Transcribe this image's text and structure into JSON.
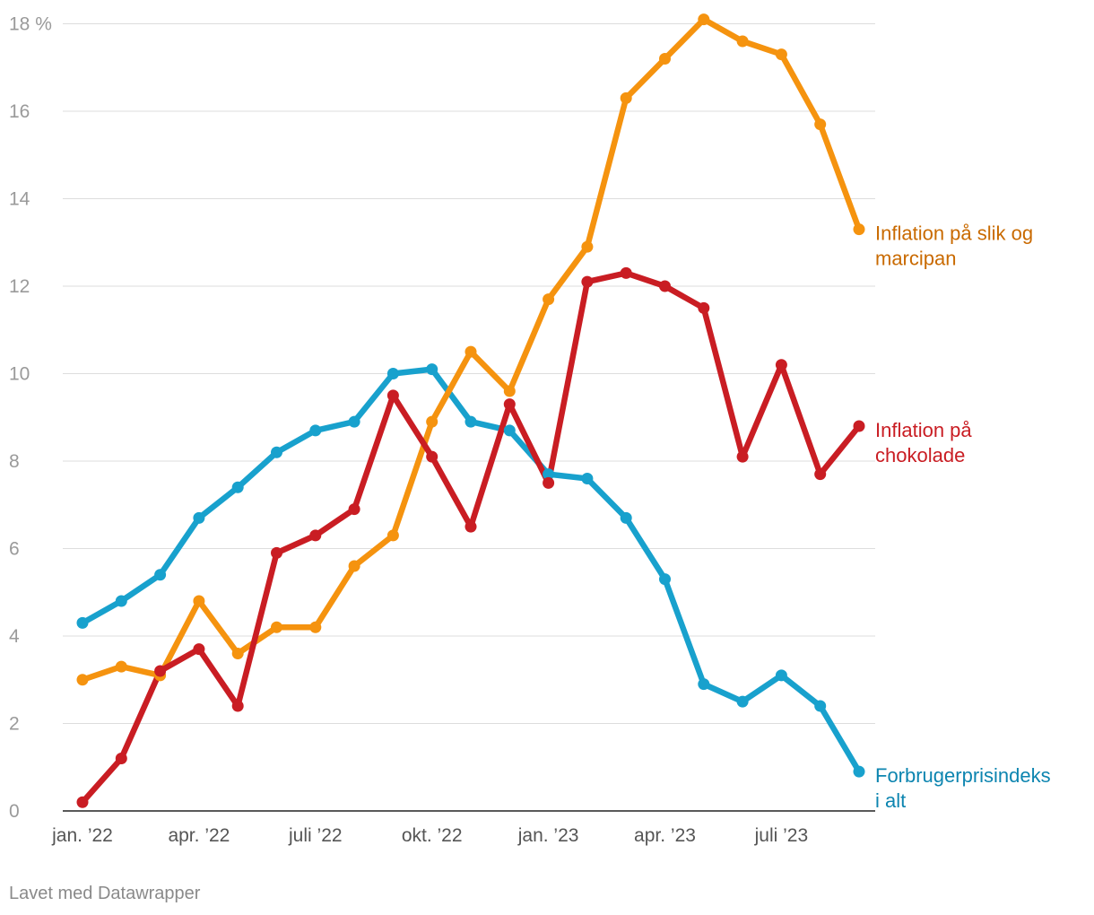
{
  "chart_data": {
    "type": "line",
    "title": "",
    "xlabel": "",
    "ylabel": "",
    "y_unit_label": "18 %",
    "ylim": [
      0,
      18
    ],
    "y_ticks": [
      0,
      2,
      4,
      6,
      8,
      10,
      12,
      14,
      16,
      18
    ],
    "y_tick_labels": [
      "0",
      "2",
      "4",
      "6",
      "8",
      "10",
      "12",
      "14",
      "16",
      "18 %"
    ],
    "x": [
      "jan. '22",
      "feb. '22",
      "mar. '22",
      "apr. '22",
      "maj '22",
      "jun. '22",
      "juli '22",
      "aug. '22",
      "sep. '22",
      "okt. '22",
      "nov. '22",
      "dec. '22",
      "jan. '23",
      "feb. '23",
      "mar. '23",
      "apr. '23",
      "maj '23",
      "jun. '23",
      "juli '23",
      "aug. '23",
      "sep. '23"
    ],
    "x_ticks": [
      {
        "index": 0,
        "label": "jan. ’22"
      },
      {
        "index": 3,
        "label": "apr. ’22"
      },
      {
        "index": 6,
        "label": "juli ’22"
      },
      {
        "index": 9,
        "label": "okt. ’22"
      },
      {
        "index": 12,
        "label": "jan. ’23"
      },
      {
        "index": 15,
        "label": "apr. ’23"
      },
      {
        "index": 18,
        "label": "juli ’23"
      }
    ],
    "grid": true,
    "series": [
      {
        "name": "Inflation på slik og marcipan",
        "label_lines": [
          "Inflation på slik og",
          "marcipan"
        ],
        "color": "#f5930f",
        "label_color": "#c96a00",
        "values": [
          3.0,
          3.3,
          3.1,
          4.8,
          3.6,
          4.2,
          4.2,
          5.6,
          6.3,
          8.9,
          10.5,
          9.6,
          11.7,
          12.9,
          16.3,
          17.2,
          18.1,
          17.6,
          17.3,
          15.7,
          13.3
        ]
      },
      {
        "name": "Inflation på chokolade",
        "label_lines": [
          "Inflation på",
          "chokolade"
        ],
        "color": "#c91d23",
        "label_color": "#c91d23",
        "values": [
          0.2,
          1.2,
          3.2,
          3.7,
          2.4,
          5.9,
          6.3,
          6.9,
          9.5,
          8.1,
          6.5,
          9.3,
          7.5,
          12.1,
          12.3,
          12.0,
          11.5,
          8.1,
          10.2,
          7.7,
          8.8
        ]
      },
      {
        "name": "Forbrugerprisindeks i alt",
        "label_lines": [
          "Forbrugerprisindeks",
          "i alt"
        ],
        "color": "#18a1cd",
        "label_color": "#0d85b0",
        "values": [
          4.3,
          4.8,
          5.4,
          6.7,
          7.4,
          8.2,
          8.7,
          8.9,
          10.0,
          10.1,
          8.9,
          8.7,
          7.7,
          7.6,
          6.7,
          5.3,
          2.9,
          2.5,
          3.1,
          2.4,
          0.9
        ]
      }
    ]
  },
  "credit": "Lavet med Datawrapper"
}
